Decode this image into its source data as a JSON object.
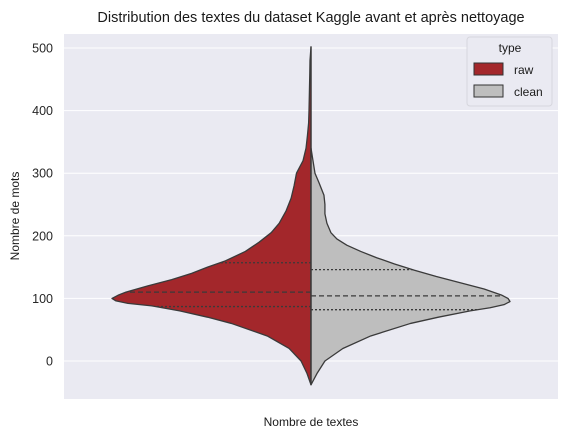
{
  "chart_data": {
    "type": "violin",
    "title": "Distribution des textes du dataset Kaggle avant et après nettoyage",
    "xlabel": "Nombre de textes",
    "ylabel": "Nombre de mots",
    "ylim": [
      -60,
      530
    ],
    "yticks": [
      0,
      100,
      200,
      300,
      400,
      500
    ],
    "ytick_labels": [
      "0",
      "100",
      "200",
      "300",
      "400",
      "500"
    ],
    "grid": true,
    "legend": {
      "title": "type",
      "placement": "top-right"
    },
    "series": [
      {
        "name": "raw",
        "color": "#a3272b",
        "quartiles": {
          "q1": 87,
          "median": 110,
          "q3": 157
        },
        "profile": [
          [
            -38,
            0.0
          ],
          [
            -20,
            0.02
          ],
          [
            0,
            0.05
          ],
          [
            20,
            0.11
          ],
          [
            40,
            0.22
          ],
          [
            60,
            0.4
          ],
          [
            70,
            0.52
          ],
          [
            80,
            0.66
          ],
          [
            88,
            0.8
          ],
          [
            92,
            0.92
          ],
          [
            96,
            0.98
          ],
          [
            100,
            1.0
          ],
          [
            105,
            0.97
          ],
          [
            110,
            0.93
          ],
          [
            120,
            0.82
          ],
          [
            130,
            0.7
          ],
          [
            140,
            0.6
          ],
          [
            150,
            0.52
          ],
          [
            160,
            0.43
          ],
          [
            175,
            0.33
          ],
          [
            190,
            0.26
          ],
          [
            205,
            0.2
          ],
          [
            220,
            0.16
          ],
          [
            240,
            0.125
          ],
          [
            260,
            0.1
          ],
          [
            280,
            0.085
          ],
          [
            300,
            0.073
          ],
          [
            320,
            0.04
          ],
          [
            340,
            0.025
          ],
          [
            360,
            0.018
          ],
          [
            380,
            0.012
          ],
          [
            400,
            0.01
          ],
          [
            430,
            0.008
          ],
          [
            460,
            0.006
          ],
          [
            480,
            0.005
          ],
          [
            502,
            0.0
          ]
        ]
      },
      {
        "name": "clean",
        "color": "#bebebe",
        "quartiles": {
          "q1": 82,
          "median": 104,
          "q3": 146
        },
        "profile": [
          [
            -38,
            0.0
          ],
          [
            -20,
            0.03
          ],
          [
            0,
            0.07
          ],
          [
            20,
            0.16
          ],
          [
            40,
            0.3
          ],
          [
            60,
            0.5
          ],
          [
            70,
            0.64
          ],
          [
            80,
            0.8
          ],
          [
            85,
            0.9
          ],
          [
            90,
            0.97
          ],
          [
            95,
            1.0
          ],
          [
            100,
            0.99
          ],
          [
            105,
            0.96
          ],
          [
            115,
            0.87
          ],
          [
            125,
            0.75
          ],
          [
            135,
            0.63
          ],
          [
            145,
            0.52
          ],
          [
            155,
            0.42
          ],
          [
            165,
            0.33
          ],
          [
            175,
            0.25
          ],
          [
            185,
            0.18
          ],
          [
            195,
            0.13
          ],
          [
            205,
            0.1
          ],
          [
            220,
            0.08
          ],
          [
            235,
            0.07
          ],
          [
            250,
            0.07
          ],
          [
            265,
            0.065
          ],
          [
            285,
            0.04
          ],
          [
            300,
            0.02
          ],
          [
            320,
            0.01
          ],
          [
            340,
            0.0
          ]
        ]
      }
    ]
  }
}
